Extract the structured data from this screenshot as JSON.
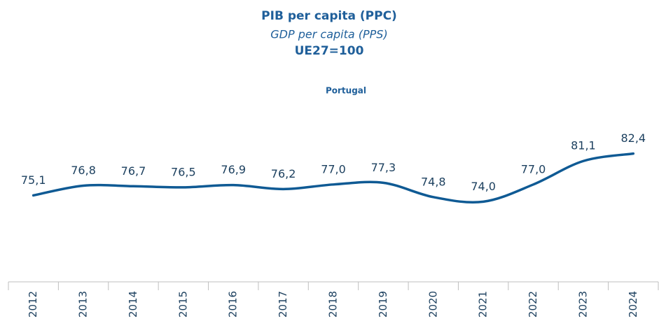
{
  "chart_data": {
    "type": "line",
    "title": "PIB per capita (PPC)",
    "subtitle": "GDP per capita (PPS)",
    "unit_note": "UE27=100",
    "series_title": "Portugal",
    "categories": [
      "2012",
      "2013",
      "2014",
      "2015",
      "2016",
      "2017",
      "2018",
      "2019",
      "2020",
      "2021",
      "2022",
      "2023",
      "2024"
    ],
    "series": [
      {
        "name": "Portugal",
        "color": "#0f5a94",
        "values": [
          75.1,
          76.8,
          76.7,
          76.5,
          76.9,
          76.2,
          77.0,
          77.3,
          74.8,
          74.0,
          77.0,
          81.1,
          82.4
        ],
        "value_labels": [
          "75,1",
          "76,8",
          "76,7",
          "76,5",
          "76,9",
          "76,2",
          "77,0",
          "77,3",
          "74,8",
          "74,0",
          "77,0",
          "81,1",
          "82,4"
        ]
      }
    ],
    "ylim": [
      60,
      92
    ]
  }
}
